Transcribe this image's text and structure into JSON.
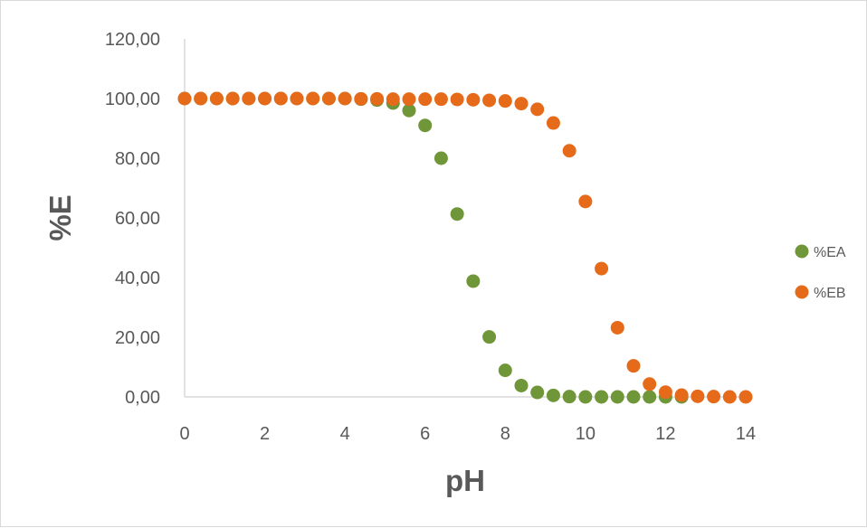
{
  "chart_data": {
    "type": "scatter",
    "title": "",
    "xlabel": "pH",
    "ylabel": "%E",
    "xlim": [
      0,
      14
    ],
    "ylim": [
      0,
      120
    ],
    "xticks": [
      "0",
      "2",
      "4",
      "6",
      "8",
      "10",
      "12",
      "14"
    ],
    "yticks": [
      "0,00",
      "20,00",
      "40,00",
      "60,00",
      "80,00",
      "100,00",
      "120,00"
    ],
    "grid": false,
    "legend_position": "right",
    "series": [
      {
        "name": "%EA",
        "color": "#70963a",
        "x": [
          0,
          0.4,
          0.8,
          1.2,
          1.6,
          2.0,
          2.4,
          2.8,
          3.2,
          3.6,
          4.0,
          4.4,
          4.8,
          5.2,
          5.6,
          6.0,
          6.4,
          6.8,
          7.2,
          7.6,
          8.0,
          8.4,
          8.8,
          9.2,
          9.6,
          10.0,
          10.4,
          10.8,
          11.2,
          11.6,
          12.0,
          12.4
        ],
        "y": [
          100,
          100,
          100,
          100,
          100,
          100,
          100,
          100,
          100,
          100,
          100,
          99.8,
          99.5,
          98.5,
          96,
          91,
          80,
          61.3,
          38.8,
          20.1,
          8.9,
          3.8,
          1.5,
          0.5,
          0.1,
          0,
          0,
          0,
          0,
          0,
          0,
          0
        ]
      },
      {
        "name": "%EB",
        "color": "#e56b1a",
        "x": [
          0,
          0.4,
          0.8,
          1.2,
          1.6,
          2.0,
          2.4,
          2.8,
          3.2,
          3.6,
          4.0,
          4.4,
          4.8,
          5.2,
          5.6,
          6.0,
          6.4,
          6.8,
          7.2,
          7.6,
          8.0,
          8.4,
          8.8,
          9.2,
          9.6,
          10.0,
          10.4,
          10.8,
          11.2,
          11.6,
          12.0,
          12.4,
          12.8,
          13.2,
          13.6,
          14.0
        ],
        "y": [
          100,
          100,
          100,
          100,
          100,
          100,
          100,
          100,
          100,
          100,
          100,
          99.9,
          99.9,
          99.8,
          99.8,
          99.8,
          99.8,
          99.7,
          99.6,
          99.4,
          99.2,
          98.3,
          96.4,
          91.8,
          82.5,
          65.5,
          43,
          23.2,
          10.4,
          4.3,
          1.6,
          0.6,
          0.2,
          0.1,
          0,
          0
        ]
      }
    ]
  }
}
